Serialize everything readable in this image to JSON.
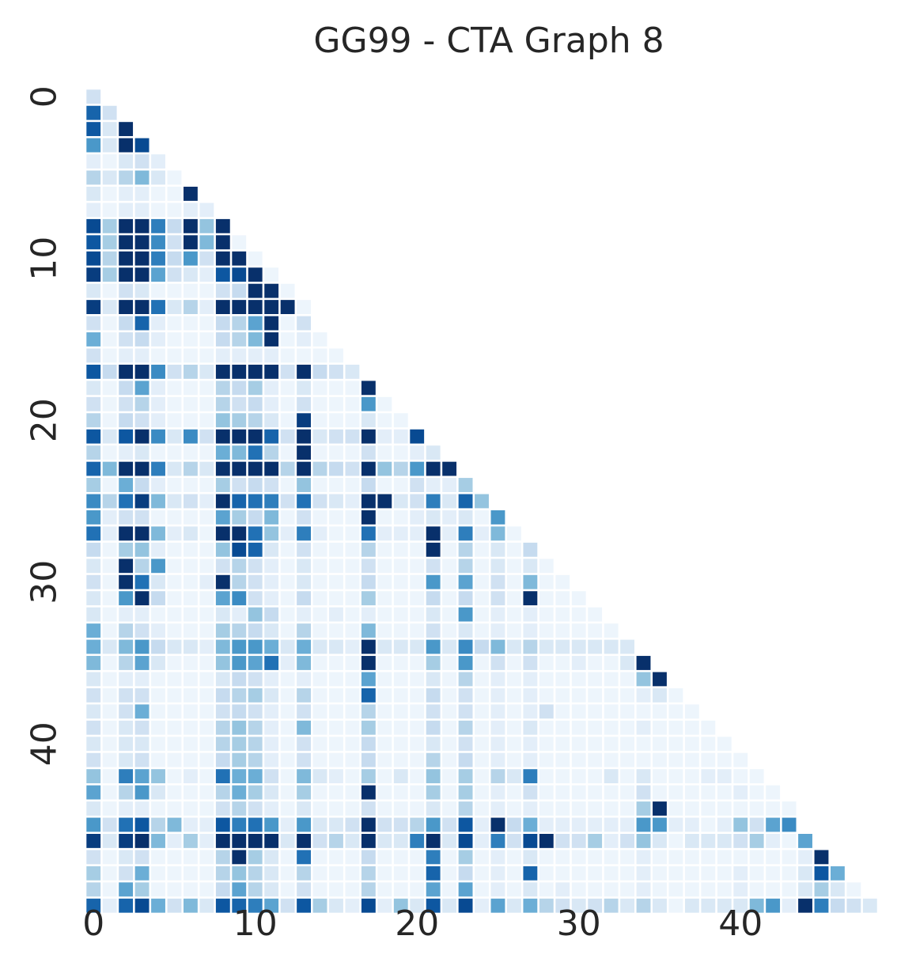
{
  "chart_data": {
    "type": "heatmap",
    "title": "GG99 - CTA Graph 8",
    "xlabel": "",
    "ylabel": "",
    "n": 49,
    "mask": "lower-triangle-including-diagonal",
    "colormap": "Blues",
    "value_range": [
      0,
      1
    ],
    "colorbar": false,
    "grid": false,
    "x_ticks": [
      0,
      10,
      20,
      30,
      40
    ],
    "y_ticks": [
      0,
      10,
      20,
      30,
      40
    ],
    "rows": [
      [
        0.2
      ],
      [
        0.8,
        0.2
      ],
      [
        0.85,
        0.15,
        1.0
      ],
      [
        0.6,
        0.15,
        1.0,
        0.9
      ],
      [
        0.1,
        0.05,
        0.15,
        0.2,
        0.1
      ],
      [
        0.3,
        0.15,
        0.3,
        0.45,
        0.15,
        0.05
      ],
      [
        0.15,
        0.05,
        0.1,
        0.1,
        0.05,
        0.05,
        1.0
      ],
      [
        0.1,
        0.05,
        0.1,
        0.1,
        0.05,
        0.05,
        0.1,
        0.1
      ],
      [
        0.9,
        0.35,
        1.0,
        1.0,
        0.7,
        0.25,
        1.0,
        0.4,
        1.0
      ],
      [
        0.85,
        0.35,
        1.0,
        1.0,
        0.65,
        0.2,
        1.0,
        0.45,
        1.0,
        0.05
      ],
      [
        0.9,
        0.3,
        1.0,
        1.0,
        0.7,
        0.25,
        0.6,
        0.2,
        1.0,
        1.0,
        0.05
      ],
      [
        0.95,
        0.35,
        1.0,
        1.0,
        0.55,
        0.2,
        0.15,
        0.1,
        0.85,
        0.9,
        1.0,
        0.05
      ],
      [
        0.15,
        0.05,
        0.2,
        0.15,
        0.05,
        0.05,
        0.05,
        0.05,
        0.2,
        0.25,
        1.0,
        1.0,
        0.05
      ],
      [
        0.95,
        0.15,
        1.0,
        1.0,
        0.75,
        0.15,
        0.3,
        0.1,
        1.0,
        1.0,
        1.0,
        1.0,
        1.0,
        0.05
      ],
      [
        0.2,
        0.05,
        0.25,
        0.8,
        0.1,
        0.05,
        0.05,
        0.05,
        0.25,
        0.3,
        0.55,
        1.0,
        0.05,
        0.2
      ],
      [
        0.5,
        0.05,
        0.2,
        0.25,
        0.1,
        0.05,
        0.05,
        0.05,
        0.25,
        0.3,
        0.45,
        1.0,
        0.05,
        0.1,
        0.05
      ],
      [
        0.2,
        0.05,
        0.1,
        0.1,
        0.05,
        0.05,
        0.05,
        0.05,
        0.1,
        0.1,
        0.1,
        0.1,
        0.05,
        0.05,
        0.05,
        0.05
      ],
      [
        0.85,
        0.25,
        1.0,
        1.0,
        0.65,
        0.2,
        0.3,
        0.15,
        1.0,
        1.0,
        1.0,
        1.0,
        0.2,
        1.0,
        0.25,
        0.2,
        0.15
      ],
      [
        0.15,
        0.05,
        0.25,
        0.55,
        0.1,
        0.05,
        0.05,
        0.05,
        0.3,
        0.25,
        0.35,
        0.1,
        0.05,
        0.15,
        0.05,
        0.05,
        0.05,
        1.0
      ],
      [
        0.2,
        0.05,
        0.2,
        0.3,
        0.1,
        0.05,
        0.05,
        0.05,
        0.3,
        0.2,
        0.25,
        0.1,
        0.05,
        0.2,
        0.05,
        0.05,
        0.05,
        0.6,
        0.05
      ],
      [
        0.3,
        0.05,
        0.25,
        0.2,
        0.1,
        0.05,
        0.05,
        0.05,
        0.4,
        0.35,
        0.3,
        0.15,
        0.05,
        0.95,
        0.05,
        0.05,
        0.05,
        0.15,
        0.05,
        0.05
      ],
      [
        0.85,
        0.15,
        0.85,
        1.0,
        0.65,
        0.15,
        0.65,
        0.2,
        1.0,
        1.0,
        1.0,
        0.8,
        0.2,
        1.0,
        0.15,
        0.2,
        0.2,
        1.0,
        0.1,
        0.1,
        0.9
      ],
      [
        0.3,
        0.05,
        0.1,
        0.15,
        0.05,
        0.05,
        0.05,
        0.05,
        0.5,
        0.45,
        0.75,
        0.3,
        0.05,
        1.0,
        0.05,
        0.05,
        0.05,
        0.2,
        0.05,
        0.05,
        0.1,
        0.15
      ],
      [
        0.8,
        0.45,
        1.0,
        1.0,
        0.7,
        0.15,
        0.3,
        0.15,
        1.0,
        1.0,
        1.0,
        1.0,
        0.3,
        1.0,
        0.3,
        0.25,
        0.2,
        1.0,
        0.4,
        0.3,
        0.6,
        1.0,
        1.0
      ],
      [
        0.35,
        0.05,
        0.5,
        0.25,
        0.1,
        0.05,
        0.05,
        0.05,
        0.35,
        0.2,
        0.25,
        0.2,
        0.05,
        0.4,
        0.05,
        0.05,
        0.05,
        0.25,
        0.05,
        0.05,
        0.2,
        0.1,
        0.1,
        0.35
      ],
      [
        0.65,
        0.3,
        0.75,
        0.95,
        0.45,
        0.15,
        0.2,
        0.1,
        1.0,
        0.8,
        0.75,
        0.7,
        0.2,
        0.75,
        0.2,
        0.15,
        0.1,
        1.0,
        1.0,
        0.15,
        0.2,
        0.7,
        0.15,
        0.8,
        0.4
      ],
      [
        0.6,
        0.1,
        0.2,
        0.2,
        0.05,
        0.05,
        0.05,
        0.05,
        0.55,
        0.35,
        0.25,
        0.45,
        0.05,
        0.2,
        0.05,
        0.05,
        0.05,
        1.0,
        0.05,
        0.05,
        0.1,
        0.15,
        0.1,
        0.15,
        0.05,
        0.6
      ],
      [
        0.75,
        0.1,
        1.0,
        1.0,
        0.45,
        0.1,
        0.15,
        0.05,
        1.0,
        1.0,
        0.75,
        0.4,
        0.1,
        0.7,
        0.1,
        0.05,
        0.05,
        0.75,
        0.1,
        0.1,
        0.1,
        1.0,
        0.1,
        0.7,
        0.1,
        0.45,
        0.05
      ],
      [
        0.25,
        0.05,
        0.35,
        0.4,
        0.1,
        0.05,
        0.05,
        0.05,
        0.4,
        0.9,
        0.8,
        0.15,
        0.05,
        0.2,
        0.05,
        0.05,
        0.05,
        0.3,
        0.05,
        0.05,
        0.05,
        1.0,
        0.05,
        0.3,
        0.05,
        0.15,
        0.05,
        0.25
      ],
      [
        0.15,
        0.05,
        1.0,
        0.3,
        0.6,
        0.05,
        0.05,
        0.05,
        0.2,
        0.3,
        0.2,
        0.1,
        0.05,
        0.15,
        0.05,
        0.05,
        0.05,
        0.2,
        0.05,
        0.05,
        0.05,
        0.2,
        0.05,
        0.3,
        0.05,
        0.15,
        0.05,
        0.15,
        0.05
      ],
      [
        0.2,
        0.05,
        1.0,
        0.75,
        0.15,
        0.05,
        0.05,
        0.1,
        1.0,
        0.3,
        0.2,
        0.1,
        0.05,
        0.15,
        0.05,
        0.05,
        0.05,
        0.25,
        0.05,
        0.05,
        0.05,
        0.6,
        0.05,
        0.55,
        0.05,
        0.2,
        0.05,
        0.45,
        0.05,
        0.05
      ],
      [
        0.15,
        0.05,
        0.6,
        1.0,
        0.25,
        0.05,
        0.05,
        0.05,
        0.55,
        0.65,
        0.2,
        0.1,
        0.05,
        0.25,
        0.05,
        0.05,
        0.05,
        0.35,
        0.05,
        0.05,
        0.05,
        0.25,
        0.05,
        0.25,
        0.05,
        0.2,
        0.05,
        1.0,
        0.05,
        0.05,
        0.05
      ],
      [
        0.15,
        0.05,
        0.1,
        0.1,
        0.05,
        0.05,
        0.05,
        0.05,
        0.15,
        0.1,
        0.4,
        0.25,
        0.05,
        0.1,
        0.05,
        0.1,
        0.05,
        0.1,
        0.05,
        0.05,
        0.05,
        0.15,
        0.05,
        0.6,
        0.05,
        0.1,
        0.05,
        0.1,
        0.05,
        0.05,
        0.05,
        0.05
      ],
      [
        0.5,
        0.05,
        0.3,
        0.2,
        0.1,
        0.05,
        0.05,
        0.05,
        0.35,
        0.3,
        0.25,
        0.15,
        0.05,
        0.3,
        0.05,
        0.05,
        0.05,
        0.45,
        0.05,
        0.05,
        0.05,
        0.2,
        0.05,
        0.15,
        0.05,
        0.1,
        0.05,
        0.1,
        0.05,
        0.05,
        0.05,
        0.05,
        0.05
      ],
      [
        0.5,
        0.15,
        0.45,
        0.6,
        0.25,
        0.15,
        0.15,
        0.1,
        0.45,
        0.6,
        0.6,
        0.5,
        0.15,
        0.5,
        0.15,
        0.15,
        0.1,
        1.0,
        0.15,
        0.15,
        0.15,
        0.6,
        0.15,
        0.65,
        0.25,
        0.45,
        0.15,
        0.3,
        0.15,
        0.15,
        0.15,
        0.15,
        0.15,
        0.15
      ],
      [
        0.45,
        0.05,
        0.3,
        0.55,
        0.15,
        0.05,
        0.05,
        0.05,
        0.4,
        0.6,
        0.55,
        0.75,
        0.1,
        0.45,
        0.05,
        0.05,
        0.05,
        1.0,
        0.05,
        0.05,
        0.05,
        0.35,
        0.05,
        0.6,
        0.05,
        0.2,
        0.05,
        0.2,
        0.05,
        0.05,
        0.1,
        0.05,
        0.05,
        0.15,
        1.0
      ],
      [
        0.15,
        0.05,
        0.1,
        0.1,
        0.05,
        0.05,
        0.05,
        0.05,
        0.15,
        0.25,
        0.2,
        0.1,
        0.05,
        0.1,
        0.05,
        0.05,
        0.05,
        0.55,
        0.05,
        0.05,
        0.05,
        0.15,
        0.05,
        0.3,
        0.05,
        0.1,
        0.05,
        0.1,
        0.05,
        0.05,
        0.05,
        0.05,
        0.05,
        0.05,
        0.4,
        1.0
      ],
      [
        0.2,
        0.05,
        0.2,
        0.2,
        0.05,
        0.05,
        0.05,
        0.05,
        0.25,
        0.3,
        0.35,
        0.15,
        0.05,
        0.3,
        0.05,
        0.05,
        0.05,
        0.8,
        0.05,
        0.05,
        0.05,
        0.25,
        0.05,
        0.2,
        0.05,
        0.1,
        0.05,
        0.1,
        0.05,
        0.05,
        0.05,
        0.05,
        0.05,
        0.05,
        0.1,
        0.15,
        0.05
      ],
      [
        0.15,
        0.05,
        0.2,
        0.5,
        0.05,
        0.05,
        0.05,
        0.05,
        0.2,
        0.25,
        0.2,
        0.1,
        0.05,
        0.2,
        0.05,
        0.05,
        0.05,
        0.3,
        0.05,
        0.05,
        0.05,
        0.2,
        0.05,
        0.2,
        0.05,
        0.1,
        0.05,
        0.1,
        0.2,
        0.05,
        0.05,
        0.05,
        0.05,
        0.05,
        0.05,
        0.05,
        0.05,
        0.05
      ],
      [
        0.2,
        0.05,
        0.15,
        0.2,
        0.05,
        0.05,
        0.05,
        0.05,
        0.3,
        0.4,
        0.3,
        0.1,
        0.05,
        0.45,
        0.05,
        0.05,
        0.05,
        0.35,
        0.05,
        0.05,
        0.05,
        0.25,
        0.05,
        0.3,
        0.05,
        0.1,
        0.05,
        0.15,
        0.05,
        0.05,
        0.05,
        0.05,
        0.05,
        0.05,
        0.1,
        0.05,
        0.05,
        0.05,
        0.05
      ],
      [
        0.15,
        0.05,
        0.15,
        0.15,
        0.05,
        0.05,
        0.05,
        0.05,
        0.3,
        0.35,
        0.3,
        0.1,
        0.05,
        0.2,
        0.05,
        0.05,
        0.05,
        0.25,
        0.05,
        0.05,
        0.05,
        0.15,
        0.05,
        0.2,
        0.05,
        0.1,
        0.05,
        0.1,
        0.05,
        0.05,
        0.05,
        0.05,
        0.05,
        0.05,
        0.05,
        0.05,
        0.05,
        0.05,
        0.05,
        0.05
      ],
      [
        0.2,
        0.05,
        0.15,
        0.2,
        0.05,
        0.05,
        0.05,
        0.05,
        0.25,
        0.35,
        0.3,
        0.1,
        0.05,
        0.2,
        0.05,
        0.05,
        0.05,
        0.25,
        0.05,
        0.05,
        0.05,
        0.3,
        0.05,
        0.25,
        0.05,
        0.1,
        0.05,
        0.1,
        0.05,
        0.05,
        0.05,
        0.05,
        0.05,
        0.05,
        0.05,
        0.05,
        0.05,
        0.05,
        0.05,
        0.05,
        0.05
      ],
      [
        0.4,
        0.05,
        0.7,
        0.55,
        0.4,
        0.05,
        0.1,
        0.05,
        0.75,
        0.5,
        0.5,
        0.2,
        0.05,
        0.45,
        0.15,
        0.1,
        0.05,
        0.35,
        0.05,
        0.15,
        0.05,
        0.4,
        0.05,
        0.35,
        0.05,
        0.3,
        0.15,
        0.7,
        0.05,
        0.05,
        0.05,
        0.05,
        0.15,
        0.05,
        0.15,
        0.05,
        0.05,
        0.05,
        0.1,
        0.1,
        0.05,
        0.05
      ],
      [
        0.55,
        0.05,
        0.3,
        0.6,
        0.15,
        0.05,
        0.05,
        0.05,
        0.3,
        0.5,
        0.35,
        0.15,
        0.05,
        0.35,
        0.05,
        0.05,
        0.05,
        1.0,
        0.05,
        0.05,
        0.05,
        0.35,
        0.05,
        0.35,
        0.05,
        0.1,
        0.05,
        0.2,
        0.05,
        0.05,
        0.05,
        0.05,
        0.05,
        0.05,
        0.2,
        0.05,
        0.05,
        0.05,
        0.05,
        0.05,
        0.1,
        0.05,
        0.05
      ],
      [
        0.15,
        0.05,
        0.1,
        0.1,
        0.05,
        0.05,
        0.05,
        0.05,
        0.2,
        0.3,
        0.2,
        0.1,
        0.05,
        0.15,
        0.05,
        0.05,
        0.05,
        0.2,
        0.05,
        0.05,
        0.05,
        0.15,
        0.05,
        0.3,
        0.05,
        0.1,
        0.05,
        0.1,
        0.05,
        0.05,
        0.05,
        0.05,
        0.05,
        0.05,
        0.35,
        1.0,
        0.05,
        0.05,
        0.05,
        0.05,
        0.05,
        0.05,
        0.05,
        0.05
      ],
      [
        0.6,
        0.2,
        0.75,
        0.85,
        0.3,
        0.45,
        0.1,
        0.1,
        0.85,
        0.7,
        0.75,
        0.6,
        0.1,
        0.6,
        0.15,
        0.15,
        0.2,
        1.0,
        0.2,
        0.2,
        0.3,
        0.6,
        0.2,
        0.85,
        0.1,
        1.0,
        0.25,
        0.5,
        0.1,
        0.1,
        0.1,
        0.1,
        0.1,
        0.1,
        0.6,
        0.6,
        0.1,
        0.1,
        0.05,
        0.1,
        0.4,
        0.2,
        0.55,
        0.65
      ],
      [
        0.95,
        0.15,
        0.95,
        1.0,
        0.45,
        0.1,
        0.35,
        0.1,
        1.0,
        1.0,
        1.0,
        1.0,
        0.15,
        1.0,
        0.2,
        0.3,
        0.15,
        1.0,
        0.15,
        0.15,
        0.7,
        1.0,
        0.15,
        0.9,
        0.1,
        0.7,
        0.2,
        0.9,
        1.0,
        0.2,
        0.2,
        0.35,
        0.1,
        0.2,
        0.4,
        0.15,
        0.05,
        0.15,
        0.15,
        0.15,
        0.2,
        0.35,
        0.1,
        0.05,
        0.55
      ],
      [
        0.2,
        0.05,
        0.15,
        0.2,
        0.05,
        0.05,
        0.05,
        0.05,
        0.3,
        1.0,
        0.35,
        0.15,
        0.05,
        0.75,
        0.05,
        0.05,
        0.05,
        0.25,
        0.05,
        0.05,
        0.05,
        0.7,
        0.05,
        0.35,
        0.05,
        0.1,
        0.05,
        0.15,
        0.05,
        0.05,
        0.05,
        0.05,
        0.05,
        0.05,
        0.1,
        0.05,
        0.05,
        0.05,
        0.05,
        0.05,
        0.05,
        0.05,
        0.05,
        0.05,
        0.1,
        1.0
      ],
      [
        0.35,
        0.05,
        0.2,
        0.5,
        0.05,
        0.05,
        0.05,
        0.05,
        0.3,
        0.4,
        0.3,
        0.15,
        0.05,
        0.3,
        0.05,
        0.05,
        0.05,
        0.3,
        0.05,
        0.05,
        0.05,
        0.8,
        0.05,
        0.25,
        0.05,
        0.1,
        0.05,
        0.8,
        0.05,
        0.05,
        0.05,
        0.05,
        0.05,
        0.05,
        0.1,
        0.05,
        0.05,
        0.05,
        0.05,
        0.05,
        0.1,
        0.05,
        0.05,
        0.05,
        0.15,
        0.85,
        0.5
      ],
      [
        0.3,
        0.05,
        0.55,
        0.35,
        0.05,
        0.05,
        0.05,
        0.05,
        0.25,
        0.55,
        0.3,
        0.15,
        0.05,
        0.2,
        0.05,
        0.05,
        0.05,
        0.3,
        0.05,
        0.05,
        0.05,
        0.55,
        0.05,
        0.55,
        0.05,
        0.1,
        0.05,
        0.15,
        0.05,
        0.1,
        0.05,
        0.05,
        0.05,
        0.05,
        0.1,
        0.05,
        0.05,
        0.05,
        0.05,
        0.05,
        0.1,
        0.05,
        0.05,
        0.05,
        0.15,
        0.35,
        0.15,
        0.05
      ],
      [
        0.8,
        0.1,
        0.8,
        0.9,
        0.5,
        0.2,
        0.45,
        0.15,
        0.85,
        0.8,
        0.7,
        0.55,
        0.2,
        0.85,
        0.35,
        0.15,
        0.1,
        0.9,
        0.1,
        0.4,
        0.15,
        0.85,
        0.15,
        0.9,
        0.1,
        0.55,
        0.15,
        0.5,
        0.3,
        0.2,
        0.15,
        0.2,
        0.3,
        0.15,
        0.3,
        0.15,
        0.05,
        0.15,
        0.15,
        0.15,
        0.15,
        0.45,
        0.6,
        0.1,
        1.0,
        0.7,
        0.25,
        0.2,
        0.15
      ]
    ]
  }
}
